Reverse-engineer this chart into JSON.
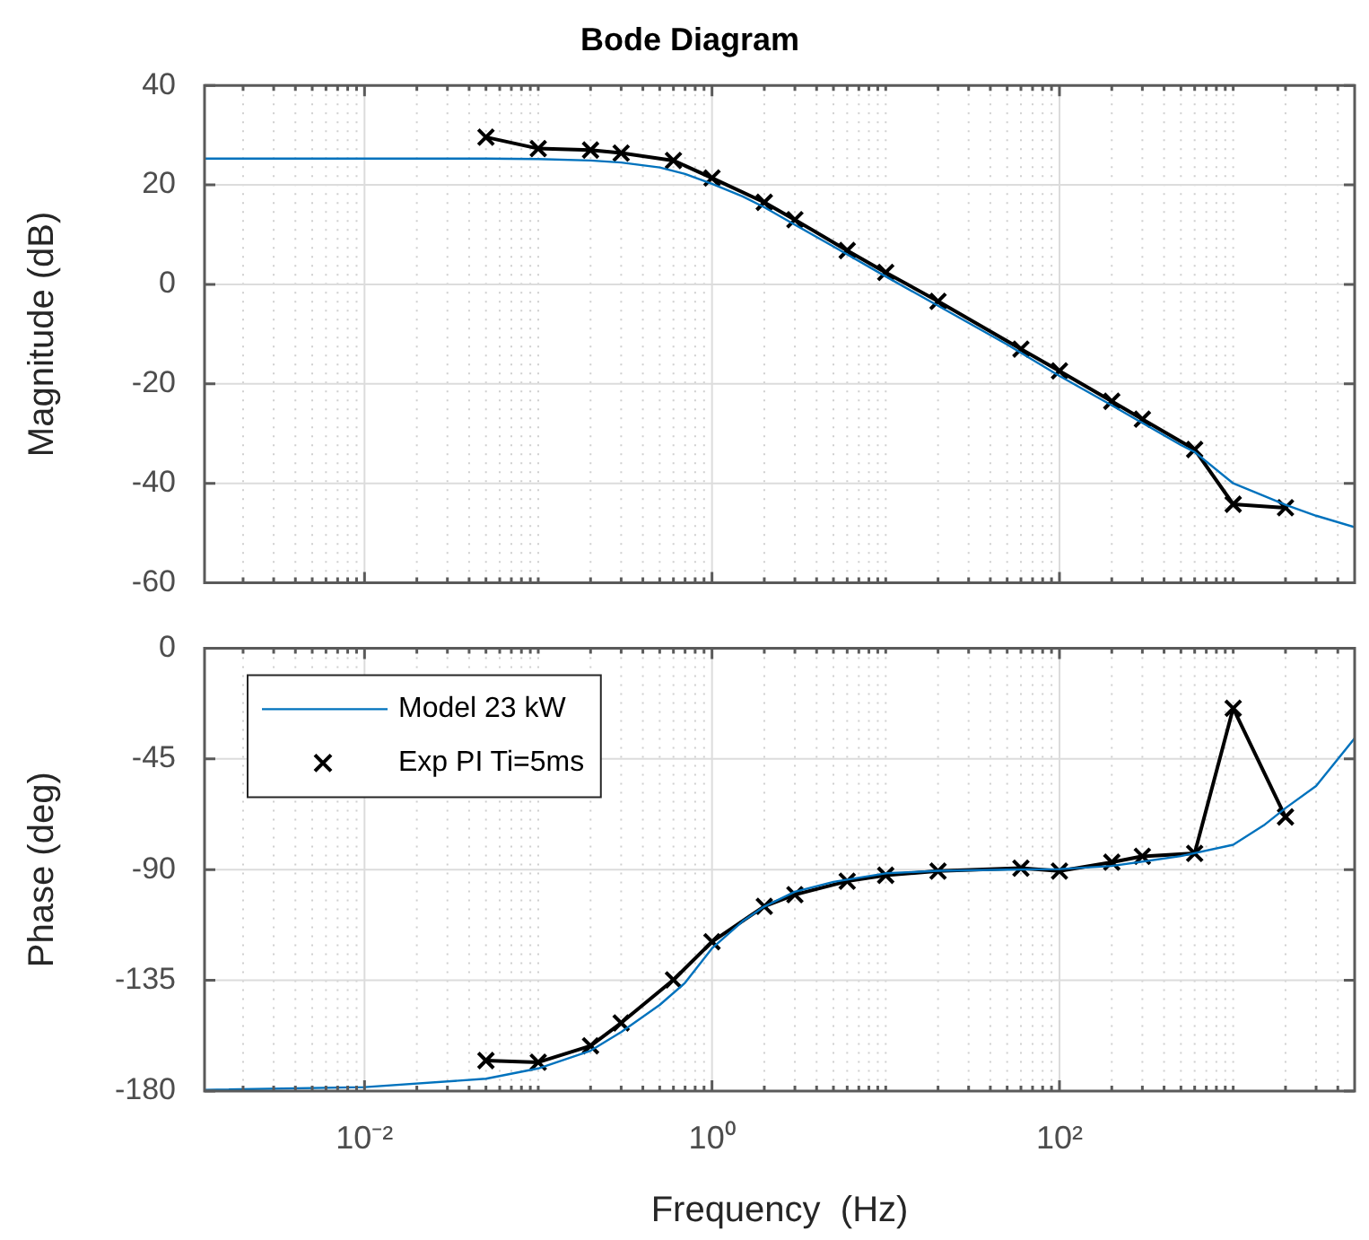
{
  "chart_data": [
    {
      "type": "line",
      "title": "Bode Diagram",
      "ylabel": "Magnitude (dB)",
      "log": "x",
      "grid": true,
      "tick_labels": "y",
      "xlim": [
        0.0012,
        5000
      ],
      "xticks": [
        {
          "value": 0.002,
          "label": null
        },
        {
          "value": 0.003,
          "label": null
        },
        {
          "value": 0.004,
          "label": null
        },
        {
          "value": 0.005,
          "label": null
        },
        {
          "value": 0.006,
          "label": null
        },
        {
          "value": 0.007,
          "label": null
        },
        {
          "value": 0.008,
          "label": null
        },
        {
          "value": 0.009,
          "label": null
        },
        {
          "value": 0.01,
          "label": null
        },
        {
          "value": 0.02,
          "label": null
        },
        {
          "value": 0.03,
          "label": null
        },
        {
          "value": 0.04,
          "label": null
        },
        {
          "value": 0.05,
          "label": null
        },
        {
          "value": 0.06,
          "label": null
        },
        {
          "value": 0.07,
          "label": null
        },
        {
          "value": 0.08,
          "label": null
        },
        {
          "value": 0.09,
          "label": null
        },
        {
          "value": 0.1,
          "label": null
        },
        {
          "value": 0.2,
          "label": null
        },
        {
          "value": 0.3,
          "label": null
        },
        {
          "value": 0.4,
          "label": null
        },
        {
          "value": 0.5,
          "label": null
        },
        {
          "value": 0.6,
          "label": null
        },
        {
          "value": 0.7,
          "label": null
        },
        {
          "value": 0.8,
          "label": null
        },
        {
          "value": 0.9,
          "label": null
        },
        {
          "value": 1,
          "label": null
        },
        {
          "value": 2,
          "label": null
        },
        {
          "value": 3,
          "label": null
        },
        {
          "value": 4,
          "label": null
        },
        {
          "value": 5,
          "label": null
        },
        {
          "value": 6,
          "label": null
        },
        {
          "value": 7,
          "label": null
        },
        {
          "value": 8,
          "label": null
        },
        {
          "value": 9,
          "label": null
        },
        {
          "value": 10,
          "label": null
        },
        {
          "value": 20,
          "label": null
        },
        {
          "value": 30,
          "label": null
        },
        {
          "value": 40,
          "label": null
        },
        {
          "value": 50,
          "label": null
        },
        {
          "value": 60,
          "label": null
        },
        {
          "value": 70,
          "label": null
        },
        {
          "value": 80,
          "label": null
        },
        {
          "value": 90,
          "label": null
        },
        {
          "value": 100,
          "label": null
        },
        {
          "value": 200,
          "label": null
        },
        {
          "value": 300,
          "label": null
        },
        {
          "value": 400,
          "label": null
        },
        {
          "value": 500,
          "label": null
        },
        {
          "value": 600,
          "label": null
        },
        {
          "value": 700,
          "label": null
        },
        {
          "value": 800,
          "label": null
        },
        {
          "value": 900,
          "label": null
        },
        {
          "value": 1000,
          "label": null
        },
        {
          "value": 2000,
          "label": null
        },
        {
          "value": 3000,
          "label": null
        },
        {
          "value": 4000,
          "label": null
        }
      ],
      "ylim": [
        -60,
        40
      ],
      "yticks": [
        -60,
        -40,
        -20,
        0,
        20,
        40
      ],
      "series": [
        {
          "type": "line",
          "color": "#0072bd",
          "marker": "none",
          "line_style": "solid",
          "x": [
            0.0012,
            0.01,
            0.05,
            0.1,
            0.2,
            0.3,
            0.5,
            0.7,
            1,
            1.5,
            2,
            3,
            5,
            10,
            20,
            50,
            100,
            200,
            500,
            600,
            1000,
            1500,
            2000,
            3000,
            5000
          ],
          "values": [
            25.3,
            25.3,
            25.3,
            25.2,
            24.9,
            24.5,
            23.5,
            22.2,
            20.2,
            17.7,
            15.5,
            12,
            7.6,
            1.6,
            -4.3,
            -12.1,
            -18.4,
            -24.3,
            -32.3,
            -33.7,
            -40,
            -42.5,
            -44.3,
            -46.5,
            -48.8
          ]
        },
        {
          "type": "line",
          "color": "#000000",
          "marker": "cross",
          "line_style": "solid",
          "x": [
            0.05,
            0.1,
            0.2,
            0.3,
            0.6,
            1,
            2,
            3,
            6,
            10,
            20,
            60,
            100,
            200,
            300,
            600,
            1000,
            2000
          ],
          "values": [
            29.6,
            27.3,
            27,
            26.4,
            24.9,
            21.4,
            16.5,
            13,
            6.8,
            2.4,
            -3.4,
            -13,
            -17.4,
            -23.5,
            -27.1,
            -33.2,
            -44.2,
            -44.9
          ]
        }
      ]
    },
    {
      "type": "line",
      "xlabel": "Frequency  (Hz)",
      "ylabel": "Phase (deg)",
      "log": "x",
      "grid": true,
      "legend": "top left",
      "xlim": [
        0.0012,
        5000
      ],
      "xticks": [
        {
          "value": 0.002,
          "label": null
        },
        {
          "value": 0.003,
          "label": null
        },
        {
          "value": 0.004,
          "label": null
        },
        {
          "value": 0.005,
          "label": null
        },
        {
          "value": 0.006,
          "label": null
        },
        {
          "value": 0.007,
          "label": null
        },
        {
          "value": 0.008,
          "label": null
        },
        {
          "value": 0.009,
          "label": null
        },
        {
          "value": 0.01,
          "label": "10⁻²"
        },
        {
          "value": 0.02,
          "label": null
        },
        {
          "value": 0.03,
          "label": null
        },
        {
          "value": 0.04,
          "label": null
        },
        {
          "value": 0.05,
          "label": null
        },
        {
          "value": 0.06,
          "label": null
        },
        {
          "value": 0.07,
          "label": null
        },
        {
          "value": 0.08,
          "label": null
        },
        {
          "value": 0.09,
          "label": null
        },
        {
          "value": 0.1,
          "label": null
        },
        {
          "value": 0.2,
          "label": null
        },
        {
          "value": 0.3,
          "label": null
        },
        {
          "value": 0.4,
          "label": null
        },
        {
          "value": 0.5,
          "label": null
        },
        {
          "value": 0.6,
          "label": null
        },
        {
          "value": 0.7,
          "label": null
        },
        {
          "value": 0.8,
          "label": null
        },
        {
          "value": 0.9,
          "label": null
        },
        {
          "value": 1,
          "label": "10⁰"
        },
        {
          "value": 2,
          "label": null
        },
        {
          "value": 3,
          "label": null
        },
        {
          "value": 4,
          "label": null
        },
        {
          "value": 5,
          "label": null
        },
        {
          "value": 6,
          "label": null
        },
        {
          "value": 7,
          "label": null
        },
        {
          "value": 8,
          "label": null
        },
        {
          "value": 9,
          "label": null
        },
        {
          "value": 10,
          "label": null
        },
        {
          "value": 20,
          "label": null
        },
        {
          "value": 30,
          "label": null
        },
        {
          "value": 40,
          "label": null
        },
        {
          "value": 50,
          "label": null
        },
        {
          "value": 60,
          "label": null
        },
        {
          "value": 70,
          "label": null
        },
        {
          "value": 80,
          "label": null
        },
        {
          "value": 90,
          "label": null
        },
        {
          "value": 100,
          "label": "10²"
        },
        {
          "value": 200,
          "label": null
        },
        {
          "value": 300,
          "label": null
        },
        {
          "value": 400,
          "label": null
        },
        {
          "value": 500,
          "label": null
        },
        {
          "value": 600,
          "label": null
        },
        {
          "value": 700,
          "label": null
        },
        {
          "value": 800,
          "label": null
        },
        {
          "value": 900,
          "label": null
        },
        {
          "value": 1000,
          "label": null
        },
        {
          "value": 2000,
          "label": null
        },
        {
          "value": 3000,
          "label": null
        },
        {
          "value": 4000,
          "label": null
        }
      ],
      "ylim": [
        -180,
        0
      ],
      "yticks": [
        -180,
        -135,
        -90,
        -45,
        0
      ],
      "series": [
        {
          "type": "line",
          "name": "Model 23 kW",
          "color": "#0072bd",
          "marker": "none",
          "line_style": "solid",
          "x": [
            0.0012,
            0.01,
            0.05,
            0.1,
            0.2,
            0.3,
            0.5,
            0.7,
            1,
            1.5,
            2,
            3,
            5,
            10,
            20,
            50,
            100,
            200,
            500,
            1000,
            1500,
            2000,
            3000,
            5000
          ],
          "values": [
            -179.5,
            -178.4,
            -175,
            -170.8,
            -163.6,
            -156,
            -145,
            -136,
            -122,
            -111,
            -105,
            -99,
            -95,
            -91.5,
            -90.5,
            -90,
            -89.8,
            -88.5,
            -84.5,
            -79.9,
            -72,
            -65,
            -56,
            -36.6
          ]
        },
        {
          "type": "line",
          "name": "Exp PI Ti=5ms",
          "color": "#000000",
          "marker": "cross",
          "line_style": "solid",
          "x": [
            0.05,
            0.1,
            0.2,
            0.3,
            0.6,
            1,
            2,
            3,
            6,
            10,
            20,
            60,
            100,
            200,
            300,
            600,
            1000,
            2000
          ],
          "values": [
            -167.6,
            -168.3,
            -161.6,
            -152.3,
            -134.8,
            -119.3,
            -104.9,
            -100.2,
            -94.7,
            -92.3,
            -90.6,
            -89.4,
            -90.6,
            -87,
            -84.6,
            -83.4,
            -24.4,
            -68.6
          ]
        }
      ]
    }
  ]
}
